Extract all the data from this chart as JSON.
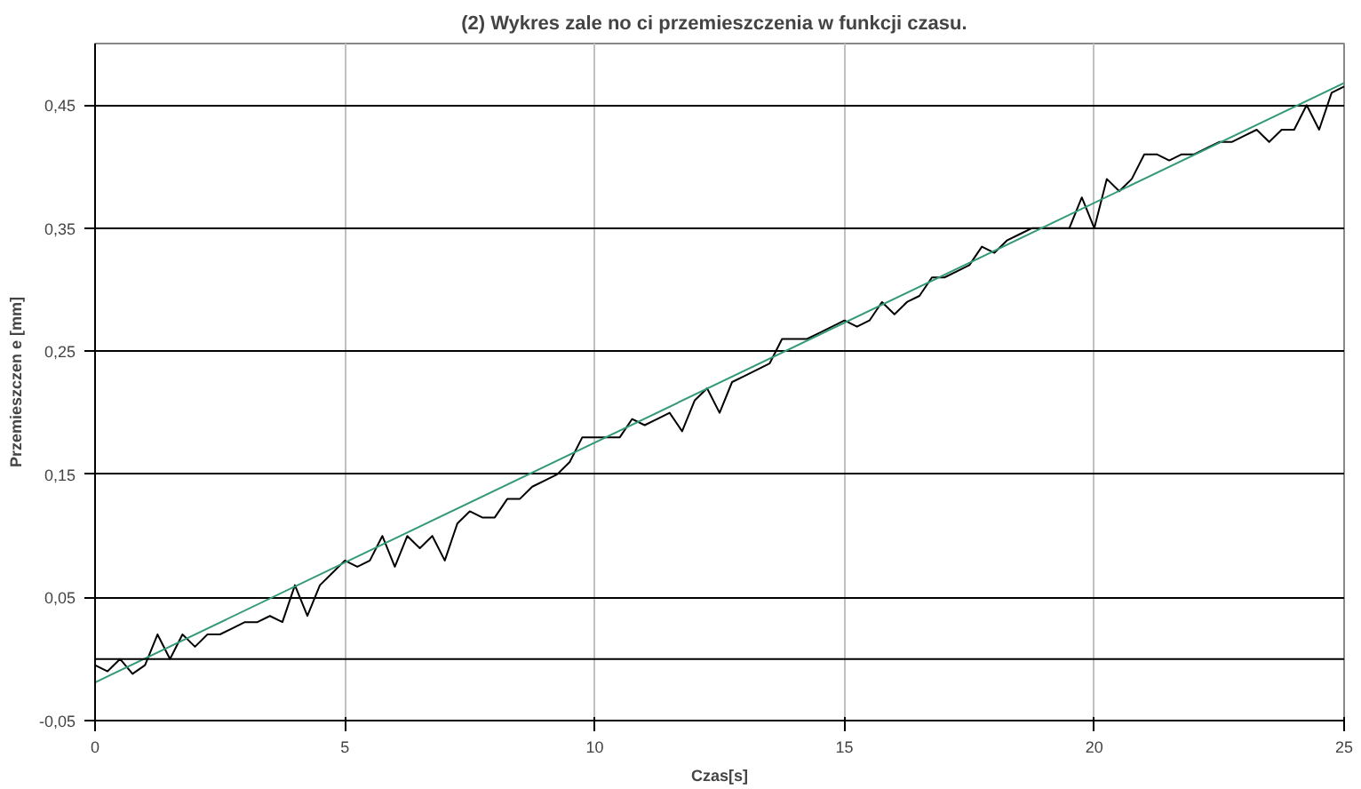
{
  "chart_data": {
    "type": "line",
    "title": "(2) Wykres zale  no  ci przemieszczenia w funkcji czasu.",
    "xlabel": "Czas[s]",
    "ylabel": "Przemieszczen e [mm]",
    "xlim": [
      0,
      25
    ],
    "xticks": [
      0,
      5,
      10,
      15,
      20,
      25
    ],
    "ylim": [
      -0.05,
      0.5
    ],
    "yticks": [
      {
        "value": -0.05,
        "label": "-0,05"
      },
      {
        "value": 0.05,
        "label": "0,05"
      },
      {
        "value": 0.15,
        "label": "0,15"
      },
      {
        "value": 0.25,
        "label": "0,25"
      },
      {
        "value": 0.35,
        "label": "0,35"
      },
      {
        "value": 0.45,
        "label": "0,45"
      }
    ],
    "grid": true,
    "marker": "none",
    "line_style": "solid",
    "ref_lines": [
      {
        "axis": "y",
        "value": 0,
        "color": "#000000"
      }
    ],
    "series": [
      {
        "color": "#000000",
        "x": [
          0,
          0.25,
          0.5,
          0.75,
          1,
          1.25,
          1.5,
          1.75,
          2,
          2.25,
          2.5,
          2.75,
          3,
          3.25,
          3.5,
          3.75,
          4,
          4.25,
          4.5,
          4.75,
          5,
          5.25,
          5.5,
          5.75,
          6,
          6.25,
          6.5,
          6.75,
          7,
          7.25,
          7.5,
          7.75,
          8,
          8.25,
          8.5,
          8.75,
          9,
          9.25,
          9.5,
          9.75,
          10,
          10.25,
          10.5,
          10.75,
          11,
          11.25,
          11.5,
          11.75,
          12,
          12.25,
          12.5,
          12.75,
          13,
          13.25,
          13.5,
          13.75,
          14,
          14.25,
          14.5,
          14.75,
          15,
          15.25,
          15.5,
          15.75,
          16,
          16.25,
          16.5,
          16.75,
          17,
          17.25,
          17.5,
          17.75,
          18,
          18.25,
          18.5,
          18.75,
          19,
          19.25,
          19.5,
          19.75,
          20,
          20.25,
          20.5,
          20.75,
          21,
          21.25,
          21.5,
          21.75,
          22,
          22.25,
          22.5,
          22.75,
          23,
          23.25,
          23.5,
          23.75,
          24,
          24.25,
          24.5,
          24.75,
          25
        ],
        "values": [
          -0.005,
          -0.01,
          0.0,
          -0.012,
          -0.005,
          0.02,
          0.0,
          0.02,
          0.01,
          0.02,
          0.02,
          0.025,
          0.03,
          0.03,
          0.035,
          0.03,
          0.06,
          0.035,
          0.06,
          0.07,
          0.08,
          0.075,
          0.08,
          0.1,
          0.075,
          0.1,
          0.09,
          0.1,
          0.08,
          0.11,
          0.12,
          0.115,
          0.115,
          0.13,
          0.13,
          0.14,
          0.145,
          0.15,
          0.16,
          0.18,
          0.18,
          0.18,
          0.18,
          0.195,
          0.19,
          0.195,
          0.2,
          0.185,
          0.21,
          0.22,
          0.2,
          0.225,
          0.23,
          0.235,
          0.24,
          0.26,
          0.26,
          0.26,
          0.265,
          0.27,
          0.275,
          0.27,
          0.275,
          0.29,
          0.28,
          0.29,
          0.295,
          0.31,
          0.31,
          0.315,
          0.32,
          0.335,
          0.33,
          0.34,
          0.345,
          0.35,
          0.35,
          0.35,
          0.35,
          0.375,
          0.35,
          0.39,
          0.38,
          0.39,
          0.41,
          0.41,
          0.405,
          0.41,
          0.41,
          0.415,
          0.42,
          0.42,
          0.425,
          0.43,
          0.42,
          0.43,
          0.43,
          0.45,
          0.43,
          0.46,
          0.465
        ]
      },
      {
        "color": "#339977",
        "x": [
          0,
          25
        ],
        "values": [
          -0.019,
          0.468
        ]
      }
    ]
  }
}
